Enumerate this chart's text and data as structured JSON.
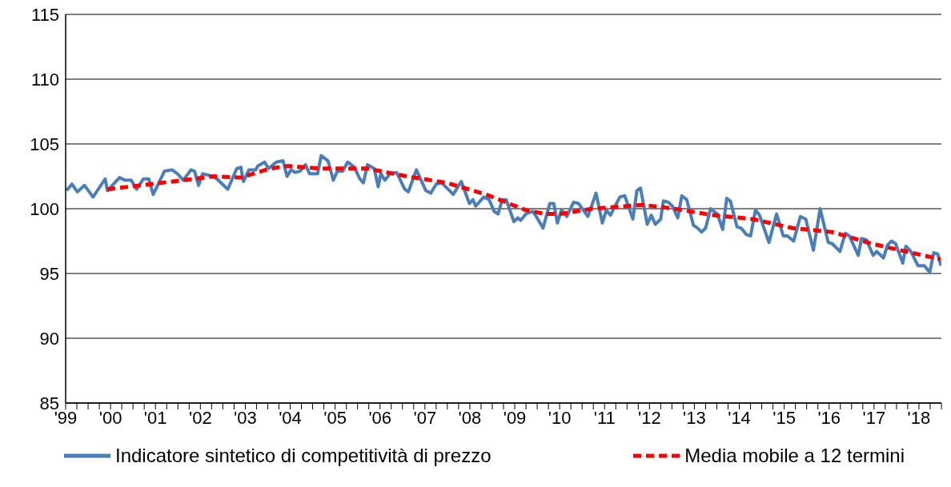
{
  "chart_data": {
    "type": "line",
    "ylim": [
      85,
      115
    ],
    "yticks": [
      85,
      90,
      95,
      100,
      105,
      110,
      115
    ],
    "xlim": [
      1999,
      2018.5
    ],
    "xticks": [
      {
        "value": 1999,
        "label": "'99"
      },
      {
        "value": 1999.25,
        "label": null
      },
      {
        "value": 1999.5,
        "label": null
      },
      {
        "value": 1999.75,
        "label": null
      },
      {
        "value": 2000,
        "label": "'00"
      },
      {
        "value": 2000.25,
        "label": null
      },
      {
        "value": 2000.5,
        "label": null
      },
      {
        "value": 2000.75,
        "label": null
      },
      {
        "value": 2001,
        "label": "'01"
      },
      {
        "value": 2001.25,
        "label": null
      },
      {
        "value": 2001.5,
        "label": null
      },
      {
        "value": 2001.75,
        "label": null
      },
      {
        "value": 2002,
        "label": "'02"
      },
      {
        "value": 2002.25,
        "label": null
      },
      {
        "value": 2002.5,
        "label": null
      },
      {
        "value": 2002.75,
        "label": null
      },
      {
        "value": 2003,
        "label": "'03"
      },
      {
        "value": 2003.25,
        "label": null
      },
      {
        "value": 2003.5,
        "label": null
      },
      {
        "value": 2003.75,
        "label": null
      },
      {
        "value": 2004,
        "label": "'04"
      },
      {
        "value": 2004.25,
        "label": null
      },
      {
        "value": 2004.5,
        "label": null
      },
      {
        "value": 2004.75,
        "label": null
      },
      {
        "value": 2005,
        "label": "'05"
      },
      {
        "value": 2005.25,
        "label": null
      },
      {
        "value": 2005.5,
        "label": null
      },
      {
        "value": 2005.75,
        "label": null
      },
      {
        "value": 2006,
        "label": "'06"
      },
      {
        "value": 2006.25,
        "label": null
      },
      {
        "value": 2006.5,
        "label": null
      },
      {
        "value": 2006.75,
        "label": null
      },
      {
        "value": 2007,
        "label": "'07"
      },
      {
        "value": 2007.25,
        "label": null
      },
      {
        "value": 2007.5,
        "label": null
      },
      {
        "value": 2007.75,
        "label": null
      },
      {
        "value": 2008,
        "label": "'08"
      },
      {
        "value": 2008.25,
        "label": null
      },
      {
        "value": 2008.5,
        "label": null
      },
      {
        "value": 2008.75,
        "label": null
      },
      {
        "value": 2009,
        "label": "'09"
      },
      {
        "value": 2009.25,
        "label": null
      },
      {
        "value": 2009.5,
        "label": null
      },
      {
        "value": 2009.75,
        "label": null
      },
      {
        "value": 2010,
        "label": "'10"
      },
      {
        "value": 2010.25,
        "label": null
      },
      {
        "value": 2010.5,
        "label": null
      },
      {
        "value": 2010.75,
        "label": null
      },
      {
        "value": 2011,
        "label": "'11"
      },
      {
        "value": 2011.25,
        "label": null
      },
      {
        "value": 2011.5,
        "label": null
      },
      {
        "value": 2011.75,
        "label": null
      },
      {
        "value": 2012,
        "label": "'12"
      },
      {
        "value": 2012.25,
        "label": null
      },
      {
        "value": 2012.5,
        "label": null
      },
      {
        "value": 2012.75,
        "label": null
      },
      {
        "value": 2013,
        "label": "'13"
      },
      {
        "value": 2013.25,
        "label": null
      },
      {
        "value": 2013.5,
        "label": null
      },
      {
        "value": 2013.75,
        "label": null
      },
      {
        "value": 2014,
        "label": "'14"
      },
      {
        "value": 2014.25,
        "label": null
      },
      {
        "value": 2014.5,
        "label": null
      },
      {
        "value": 2014.75,
        "label": null
      },
      {
        "value": 2015,
        "label": "'15"
      },
      {
        "value": 2015.25,
        "label": null
      },
      {
        "value": 2015.5,
        "label": null
      },
      {
        "value": 2015.75,
        "label": null
      },
      {
        "value": 2016,
        "label": "'16"
      },
      {
        "value": 2016.25,
        "label": null
      },
      {
        "value": 2016.5,
        "label": null
      },
      {
        "value": 2016.75,
        "label": null
      },
      {
        "value": 2017,
        "label": "'17"
      },
      {
        "value": 2017.25,
        "label": null
      },
      {
        "value": 2017.5,
        "label": null
      },
      {
        "value": 2017.75,
        "label": null
      },
      {
        "value": 2018,
        "label": "'18"
      },
      {
        "value": 2018.25,
        "label": null
      },
      {
        "value": 2018.5,
        "label": null
      }
    ],
    "grid": "y",
    "legend": "bottom",
    "series": [
      {
        "name": "Indicatore sintetico di competitività di prezzo",
        "color": "#4a7ebb",
        "line_style": "solid",
        "x": [
          1999.02,
          1999.14,
          1999.26,
          1999.42,
          1999.61,
          1999.88,
          1999.93,
          2000.2,
          2000.32,
          2000.46,
          2000.58,
          2000.73,
          2000.85,
          2000.95,
          2001.2,
          2001.37,
          2001.49,
          2001.62,
          2001.79,
          2001.87,
          2001.96,
          2002.05,
          2002.28,
          2002.37,
          2002.61,
          2002.81,
          2002.9,
          2002.96,
          2003.08,
          2003.23,
          2003.28,
          2003.43,
          2003.52,
          2003.69,
          2003.84,
          2003.93,
          2004.02,
          2004.11,
          2004.22,
          2004.34,
          2004.43,
          2004.61,
          2004.69,
          2004.84,
          2004.96,
          2005.05,
          2005.17,
          2005.28,
          2005.43,
          2005.55,
          2005.63,
          2005.72,
          2005.87,
          2005.96,
          2006.02,
          2006.11,
          2006.22,
          2006.37,
          2006.55,
          2006.63,
          2006.81,
          2007.02,
          2007.13,
          2007.25,
          2007.37,
          2007.46,
          2007.63,
          2007.81,
          2007.99,
          2008.07,
          2008.13,
          2008.31,
          2008.43,
          2008.54,
          2008.63,
          2008.72,
          2008.81,
          2008.98,
          2009.07,
          2009.13,
          2009.25,
          2009.4,
          2009.48,
          2009.63,
          2009.78,
          2009.87,
          2009.95,
          2010.04,
          2010.16,
          2010.31,
          2010.42,
          2010.63,
          2010.81,
          2010.95,
          2011.04,
          2011.13,
          2011.34,
          2011.45,
          2011.63,
          2011.72,
          2011.8,
          2011.95,
          2012.04,
          2012.13,
          2012.25,
          2012.31,
          2012.42,
          2012.51,
          2012.63,
          2012.72,
          2012.83,
          2012.98,
          2013.04,
          2013.16,
          2013.25,
          2013.36,
          2013.51,
          2013.63,
          2013.72,
          2013.8,
          2013.95,
          2014.04,
          2014.16,
          2014.25,
          2014.36,
          2014.45,
          2014.66,
          2014.83,
          2014.98,
          2015.07,
          2015.21,
          2015.36,
          2015.48,
          2015.65,
          2015.8,
          2015.98,
          2016.07,
          2016.24,
          2016.36,
          2016.45,
          2016.65,
          2016.72,
          2016.83,
          2016.98,
          2017.06,
          2017.21,
          2017.3,
          2017.39,
          2017.48,
          2017.64,
          2017.71,
          2017.82,
          2017.98,
          2018.12,
          2018.24,
          2018.33,
          2018.42,
          2018.49
        ],
        "values": [
          101.4,
          101.9,
          101.3,
          101.8,
          100.9,
          102.3,
          101.4,
          102.4,
          102.2,
          102.2,
          101.5,
          102.3,
          102.3,
          101.1,
          102.9,
          103.0,
          102.7,
          102.2,
          103.0,
          102.9,
          101.8,
          102.7,
          102.5,
          102.3,
          101.5,
          103.1,
          103.2,
          102.1,
          103.0,
          103.0,
          103.3,
          103.6,
          103.1,
          103.6,
          103.7,
          102.5,
          103.0,
          102.8,
          102.9,
          103.4,
          102.7,
          102.7,
          104.1,
          103.7,
          102.2,
          102.9,
          102.9,
          103.6,
          103.2,
          102.3,
          102.0,
          103.4,
          103.1,
          101.7,
          102.7,
          102.2,
          102.7,
          102.8,
          101.5,
          101.3,
          103.0,
          101.4,
          101.2,
          101.9,
          102.0,
          101.7,
          101.1,
          102.1,
          100.4,
          100.7,
          100.2,
          100.9,
          100.7,
          99.8,
          99.6,
          100.7,
          100.7,
          99.0,
          99.3,
          99.1,
          99.6,
          99.8,
          99.4,
          98.5,
          100.4,
          100.4,
          98.9,
          99.9,
          99.4,
          100.5,
          100.4,
          99.4,
          101.2,
          98.9,
          99.9,
          99.5,
          100.9,
          101.0,
          99.2,
          101.4,
          101.6,
          98.8,
          99.5,
          98.8,
          99.2,
          100.6,
          100.5,
          100.2,
          99.3,
          101.0,
          100.7,
          98.7,
          98.6,
          98.2,
          98.5,
          100.0,
          99.6,
          98.4,
          100.8,
          100.6,
          98.6,
          98.5,
          98.0,
          97.9,
          99.9,
          99.5,
          97.4,
          99.6,
          97.9,
          97.9,
          97.5,
          99.4,
          99.2,
          96.8,
          100.0,
          97.4,
          97.3,
          96.7,
          98.1,
          97.9,
          96.4,
          97.7,
          97.6,
          96.4,
          96.7,
          96.2,
          97.2,
          97.5,
          97.3,
          95.8,
          97.1,
          96.7,
          95.6,
          95.6,
          95.1,
          96.6,
          96.5,
          95.6
        ]
      },
      {
        "name": "Media mobile a 12 termini",
        "color": "#ff0000",
        "line_style": "dashed",
        "x": [
          1999.93,
          2000.9,
          2002.31,
          2002.9,
          2003.55,
          2003.96,
          2004.66,
          2005.14,
          2005.49,
          2005.72,
          2006.6,
          2007.48,
          2008.36,
          2009.24,
          2009.67,
          2010.02,
          2010.72,
          2011.84,
          2012.55,
          2013.42,
          2014.3,
          2015.19,
          2016.07,
          2016.95,
          2017.83,
          2018.48
        ],
        "values": [
          101.5,
          101.9,
          102.5,
          102.4,
          103.1,
          103.3,
          103.1,
          103.1,
          103.1,
          103.1,
          102.5,
          102.0,
          101.1,
          99.9,
          99.6,
          99.6,
          100.0,
          100.3,
          100.0,
          99.5,
          99.2,
          98.5,
          98.2,
          97.3,
          96.6,
          96.1
        ]
      }
    ]
  }
}
